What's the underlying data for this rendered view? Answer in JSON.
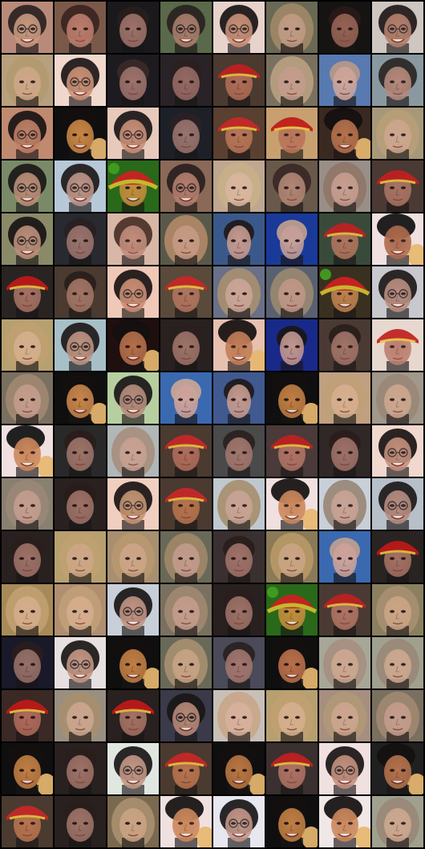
{
  "grid": {
    "rows": 16,
    "cols": 8,
    "tiles": [
      {
        "type": "glasses-dark",
        "bg": "#b98a7a",
        "skin": "#c99a80",
        "hair": "#2a2220"
      },
      {
        "type": "dark-hair",
        "bg": "#7a5a4a",
        "skin": "#c08070",
        "hair": "#3a2420"
      },
      {
        "type": "short-hair",
        "bg": "#1c1a1c",
        "skin": "#a87a70",
        "hair": "#2a1e1e"
      },
      {
        "type": "glasses-dark",
        "bg": "#5a6a4a",
        "skin": "#b08070",
        "hair": "#2a2220"
      },
      {
        "type": "glasses-dark",
        "bg": "#e9d3cc",
        "skin": "#c88a70",
        "hair": "#181414"
      },
      {
        "type": "blonde",
        "bg": "#6a6a55",
        "skin": "#c8a088",
        "hair": "#a08868"
      },
      {
        "type": "short-hair",
        "bg": "#151413",
        "skin": "#a06a5a",
        "hair": "#2a1a18"
      },
      {
        "type": "glasses-dark",
        "bg": "#cfc6c2",
        "skin": "#b47a66",
        "hair": "#201818"
      },
      {
        "type": "blonde",
        "bg": "#b8a07e",
        "skin": "#d0a888",
        "hair": "#b59a70"
      },
      {
        "type": "glasses-dark",
        "bg": "#f0d8cc",
        "skin": "#c88c70",
        "hair": "#1c1616"
      },
      {
        "type": "short-hair",
        "bg": "#1e1c20",
        "skin": "#a87a72",
        "hair": "#3a2a28"
      },
      {
        "type": "short-hair",
        "bg": "#2a2226",
        "skin": "#a0706a",
        "hair": "#2c2020"
      },
      {
        "type": "red-hat",
        "bg": "#4a3a30",
        "skin": "#b87058",
        "hair": "#c02020"
      },
      {
        "type": "blonde",
        "bg": "#7a7060",
        "skin": "#caa090",
        "hair": "#b8a080"
      },
      {
        "type": "pale",
        "bg": "#5a7ab0",
        "skin": "#d8a898",
        "hair": "#b89888"
      },
      {
        "type": "dark-hair",
        "bg": "#8a9aa0",
        "skin": "#b88878",
        "hair": "#2a2624"
      },
      {
        "type": "glasses-dark",
        "bg": "#c08a70",
        "skin": "#c08066",
        "hair": "#1a1414"
      },
      {
        "type": "orange-kid",
        "bg": "#101010",
        "skin": "#d8904a",
        "hair": "#141010"
      },
      {
        "type": "glasses-dark",
        "bg": "#e8cabc",
        "skin": "#c88a72",
        "hair": "#1a1616"
      },
      {
        "type": "short-hair",
        "bg": "#1e2028",
        "skin": "#a47a74",
        "hair": "#2a2024"
      },
      {
        "type": "red-hat",
        "bg": "#5a4030",
        "skin": "#c07a5a",
        "hair": "#c82828"
      },
      {
        "type": "red-hat",
        "bg": "#c8a070",
        "skin": "#b87058",
        "hair": "#c01818"
      },
      {
        "type": "orange-kid",
        "bg": "#3a2a20",
        "skin": "#c07850",
        "hair": "#141010"
      },
      {
        "type": "blonde",
        "bg": "#a8987a",
        "skin": "#d0a890",
        "hair": "#b8a078"
      },
      {
        "type": "glasses-dark",
        "bg": "#7a8a6a",
        "skin": "#c0907a",
        "hair": "#1a1818"
      },
      {
        "type": "glasses-dark",
        "bg": "#b8c8d8",
        "skin": "#c09080",
        "hair": "#1e1a1a"
      },
      {
        "type": "green-hat",
        "bg": "#2a6a1a",
        "skin": "#d09040",
        "hair": "#d02020"
      },
      {
        "type": "glasses-dark",
        "bg": "#8a6a58",
        "skin": "#b88070",
        "hair": "#2a2020"
      },
      {
        "type": "blonde",
        "bg": "#c0a890",
        "skin": "#dab8a0",
        "hair": "#c8b08a"
      },
      {
        "type": "dark-hair",
        "bg": "#6a5a4a",
        "skin": "#b88a78",
        "hair": "#3a2824"
      },
      {
        "type": "blonde",
        "bg": "#9a9088",
        "skin": "#caa090",
        "hair": "#907868"
      },
      {
        "type": "red-hat",
        "bg": "#4a3a34",
        "skin": "#b07868",
        "hair": "#c02020"
      },
      {
        "type": "glasses-dark",
        "bg": "#8a8a6a",
        "skin": "#c0907c",
        "hair": "#181414"
      },
      {
        "type": "short-hair",
        "bg": "#2a2a30",
        "skin": "#a47a72",
        "hair": "#2a2020"
      },
      {
        "type": "dark-hair",
        "bg": "#d8b8a8",
        "skin": "#c08a78",
        "hair": "#4a3028"
      },
      {
        "type": "blonde",
        "bg": "#5a5a4a",
        "skin": "#d0a088",
        "hair": "#b08868"
      },
      {
        "type": "pale",
        "bg": "#3a5a8a",
        "skin": "#d0a090",
        "hair": "#1e1a1a"
      },
      {
        "type": "pale",
        "bg": "#1a3a9a",
        "skin": "#d4a898",
        "hair": "#c0a090"
      },
      {
        "type": "red-hat",
        "bg": "#3a4a3a",
        "skin": "#b87860",
        "hair": "#c02020"
      },
      {
        "type": "orange-kid",
        "bg": "#f0e0e0",
        "skin": "#a86040",
        "hair": "#101010"
      },
      {
        "type": "red-hat",
        "bg": "#2a2422",
        "skin": "#b07868",
        "hair": "#c01818"
      },
      {
        "type": "short-hair",
        "bg": "#4a3a30",
        "skin": "#a87a6a",
        "hair": "#2a1e1c"
      },
      {
        "type": "glasses-dark",
        "bg": "#f0c8b8",
        "skin": "#c88a70",
        "hair": "#1a1414"
      },
      {
        "type": "red-hat",
        "bg": "#5a4a3a",
        "skin": "#b87860",
        "hair": "#c82828"
      },
      {
        "type": "blonde",
        "bg": "#6a7088",
        "skin": "#d4aa98",
        "hair": "#a89070"
      },
      {
        "type": "blonde",
        "bg": "#5a6070",
        "skin": "#c89a88",
        "hair": "#9a8870"
      },
      {
        "type": "green-hat",
        "bg": "#3a3020",
        "skin": "#c88850",
        "hair": "#d02020"
      },
      {
        "type": "glasses-dark",
        "bg": "#c8c8d0",
        "skin": "#b8887a",
        "hair": "#1e1a1a"
      },
      {
        "type": "blonde",
        "bg": "#b8a070",
        "skin": "#d8b090",
        "hair": "#c0a070"
      },
      {
        "type": "glasses-dark",
        "bg": "#a8c0c8",
        "skin": "#c0907a",
        "hair": "#1e1a1a"
      },
      {
        "type": "orange-kid",
        "bg": "#201010",
        "skin": "#c07850",
        "hair": "#141010"
      },
      {
        "type": "short-hair",
        "bg": "#2a2020",
        "skin": "#a87a6e",
        "hair": "#2a201e"
      },
      {
        "type": "orange-kid",
        "bg": "#e8c0b0",
        "skin": "#c07850",
        "hair": "#141010"
      },
      {
        "type": "pale",
        "bg": "#1a2a8a",
        "skin": "#d0a090",
        "hair": "#1a1616"
      },
      {
        "type": "short-hair",
        "bg": "#4a3a34",
        "skin": "#a8786c",
        "hair": "#2a1e1c"
      },
      {
        "type": "red-hat",
        "bg": "#e8d8d0",
        "skin": "#b87868",
        "hair": "#c02020"
      },
      {
        "type": "blonde",
        "bg": "#7a7060",
        "skin": "#caa090",
        "hair": "#a08870"
      },
      {
        "type": "orange-kid",
        "bg": "#101010",
        "skin": "#d89050",
        "hair": "#141010"
      },
      {
        "type": "glasses-dark",
        "bg": "#b8d0a0",
        "skin": "#b8887a",
        "hair": "#1a1616"
      },
      {
        "type": "pale",
        "bg": "#3a6ab0",
        "skin": "#d8a898",
        "hair": "#c8a898"
      },
      {
        "type": "pale",
        "bg": "#405a90",
        "skin": "#d0a090",
        "hair": "#1e1a1a"
      },
      {
        "type": "orange-kid",
        "bg": "#101010",
        "skin": "#d08848",
        "hair": "#141010"
      },
      {
        "type": "blonde",
        "bg": "#c0a080",
        "skin": "#d8b090",
        "hair": "#c0a078"
      },
      {
        "type": "blonde",
        "bg": "#a0988a",
        "skin": "#d0a890",
        "hair": "#9a8878"
      },
      {
        "type": "orange-kid",
        "bg": "#f0e0e0",
        "skin": "#c88050",
        "hair": "#101010"
      },
      {
        "type": "short-hair",
        "bg": "#2a2a2a",
        "skin": "#a87a6e",
        "hair": "#2a1e1c"
      },
      {
        "type": "blonde",
        "bg": "#b0b8b8",
        "skin": "#caa090",
        "hair": "#a89080"
      },
      {
        "type": "red-hat",
        "bg": "#4a3a30",
        "skin": "#b87060",
        "hair": "#c82828"
      },
      {
        "type": "short-hair",
        "bg": "#4a4a4a",
        "skin": "#a87a70",
        "hair": "#2a2020"
      },
      {
        "type": "red-hat",
        "bg": "#4a3a3a",
        "skin": "#b87868",
        "hair": "#c02020"
      },
      {
        "type": "short-hair",
        "bg": "#302828",
        "skin": "#a8786e",
        "hair": "#2a1e1c"
      },
      {
        "type": "glasses-dark",
        "bg": "#f0d8d0",
        "skin": "#c08a76",
        "hair": "#1a1414"
      },
      {
        "type": "blonde",
        "bg": "#8a8070",
        "skin": "#c8a090",
        "hair": "#9a8878"
      },
      {
        "type": "short-hair",
        "bg": "#2a2020",
        "skin": "#a8786c",
        "hair": "#2a1c1a"
      },
      {
        "type": "glasses-dark",
        "bg": "#f0d0c0",
        "skin": "#c0906c",
        "hair": "#1a1414"
      },
      {
        "type": "red-hat",
        "bg": "#4a3a30",
        "skin": "#c07850",
        "hair": "#c82828"
      },
      {
        "type": "blonde",
        "bg": "#c0c8d0",
        "skin": "#caa090",
        "hair": "#a89070"
      },
      {
        "type": "orange-kid",
        "bg": "#f0e0e0",
        "skin": "#c88050",
        "hair": "#141010"
      },
      {
        "type": "blonde",
        "bg": "#c8d0d8",
        "skin": "#c8a090",
        "hair": "#9a8878"
      },
      {
        "type": "glasses-dark",
        "bg": "#b8c0c8",
        "skin": "#b8887a",
        "hair": "#1e1a1a"
      },
      {
        "type": "short-hair",
        "bg": "#2a2020",
        "skin": "#a8786c",
        "hair": "#2a1e1c"
      },
      {
        "type": "blonde",
        "bg": "#b8a070",
        "skin": "#d0a888",
        "hair": "#c0a070"
      },
      {
        "type": "blonde",
        "bg": "#a89070",
        "skin": "#d0a888",
        "hair": "#b89870"
      },
      {
        "type": "blonde",
        "bg": "#6a6a5a",
        "skin": "#caa090",
        "hair": "#a08868"
      },
      {
        "type": "short-hair",
        "bg": "#3a3030",
        "skin": "#a8786e",
        "hair": "#2a1e1c"
      },
      {
        "type": "blonde",
        "bg": "#8a7a58",
        "skin": "#d0a888",
        "hair": "#b89868"
      },
      {
        "type": "pale",
        "bg": "#3a6ab0",
        "skin": "#d8a898",
        "hair": "#c0a090"
      },
      {
        "type": "red-hat",
        "bg": "#2a2422",
        "skin": "#b07868",
        "hair": "#c01818"
      },
      {
        "type": "blonde",
        "bg": "#a88a58",
        "skin": "#d8b090",
        "hair": "#c0a070"
      },
      {
        "type": "blonde",
        "bg": "#b09070",
        "skin": "#d8b090",
        "hair": "#c0a078"
      },
      {
        "type": "glasses-dark",
        "bg": "#c8d0d8",
        "skin": "#c0907c",
        "hair": "#1a1616"
      },
      {
        "type": "blonde",
        "bg": "#7a7060",
        "skin": "#caa090",
        "hair": "#a08870"
      },
      {
        "type": "short-hair",
        "bg": "#2a2020",
        "skin": "#a8786c",
        "hair": "#2a1e1c"
      },
      {
        "type": "green-hat",
        "bg": "#2a6a1a",
        "skin": "#d09040",
        "hair": "#d02020"
      },
      {
        "type": "red-hat",
        "bg": "#4a3a34",
        "skin": "#b87868",
        "hair": "#c02020"
      },
      {
        "type": "blonde",
        "bg": "#8a8060",
        "skin": "#d0a888",
        "hair": "#a89070"
      },
      {
        "type": "short-hair",
        "bg": "#1a1a2a",
        "skin": "#a0786e",
        "hair": "#2a1e1c"
      },
      {
        "type": "glasses-dark",
        "bg": "#e8e0e0",
        "skin": "#c0907c",
        "hair": "#1a1616"
      },
      {
        "type": "orange-kid",
        "bg": "#101010",
        "skin": "#d08848",
        "hair": "#141010"
      },
      {
        "type": "blonde",
        "bg": "#6a6a5a",
        "skin": "#d0a888",
        "hair": "#a89070"
      },
      {
        "type": "short-hair",
        "bg": "#4a4a5a",
        "skin": "#a87a70",
        "hair": "#2a2020"
      },
      {
        "type": "orange-kid",
        "bg": "#101010",
        "skin": "#c87850",
        "hair": "#141010"
      },
      {
        "type": "blonde",
        "bg": "#a8a898",
        "skin": "#d0a890",
        "hair": "#a89080"
      },
      {
        "type": "blonde",
        "bg": "#a0a090",
        "skin": "#d0a890",
        "hair": "#9a8878"
      },
      {
        "type": "red-hat",
        "bg": "#3a2a24",
        "skin": "#b87060",
        "hair": "#c01818"
      },
      {
        "type": "blonde",
        "bg": "#9a9080",
        "skin": "#d0a890",
        "hair": "#a89070"
      },
      {
        "type": "red-hat",
        "bg": "#2a2020",
        "skin": "#b07868",
        "hair": "#c01818"
      },
      {
        "type": "glasses-dark",
        "bg": "#3a3a4a",
        "skin": "#c0907c",
        "hair": "#1a1616"
      },
      {
        "type": "blonde",
        "bg": "#c8c0b8",
        "skin": "#d8b09a",
        "hair": "#c8a88a"
      },
      {
        "type": "blonde",
        "bg": "#b8a070",
        "skin": "#d8b090",
        "hair": "#c0a070"
      },
      {
        "type": "blonde",
        "bg": "#a89080",
        "skin": "#d0a890",
        "hair": "#b09878"
      },
      {
        "type": "blonde",
        "bg": "#7a7060",
        "skin": "#caa090",
        "hair": "#a08870"
      },
      {
        "type": "orange-kid",
        "bg": "#101010",
        "skin": "#d08848",
        "hair": "#141010"
      },
      {
        "type": "short-hair",
        "bg": "#2a2020",
        "skin": "#a8786c",
        "hair": "#2a1e1c"
      },
      {
        "type": "glasses-dark",
        "bg": "#e0e8e0",
        "skin": "#c0907c",
        "hair": "#1a1616"
      },
      {
        "type": "red-hat",
        "bg": "#4a3a30",
        "skin": "#c07850",
        "hair": "#c82828"
      },
      {
        "type": "orange-kid",
        "bg": "#101010",
        "skin": "#c88048",
        "hair": "#141010"
      },
      {
        "type": "red-hat",
        "bg": "#3a3030",
        "skin": "#b87868",
        "hair": "#c02020"
      },
      {
        "type": "glasses-dark",
        "bg": "#f0e0e0",
        "skin": "#c08a76",
        "hair": "#1a1414"
      },
      {
        "type": "orange-kid",
        "bg": "#202020",
        "skin": "#c07850",
        "hair": "#141010"
      },
      {
        "type": "red-hat",
        "bg": "#4a3a30",
        "skin": "#c07850",
        "hair": "#c82828"
      },
      {
        "type": "short-hair",
        "bg": "#2a2020",
        "skin": "#a87a6e",
        "hair": "#2a1e1c"
      },
      {
        "type": "blonde",
        "bg": "#7a6a50",
        "skin": "#d0a888",
        "hair": "#a89070"
      },
      {
        "type": "orange-kid",
        "bg": "#f0e0e0",
        "skin": "#c88050",
        "hair": "#141010"
      },
      {
        "type": "glasses-dark",
        "bg": "#e8e8f0",
        "skin": "#c09080",
        "hair": "#1a1616"
      },
      {
        "type": "orange-kid",
        "bg": "#101010",
        "skin": "#d08848",
        "hair": "#141010"
      },
      {
        "type": "orange-kid",
        "bg": "#f0e8e8",
        "skin": "#c88050",
        "hair": "#141010"
      },
      {
        "type": "blonde",
        "bg": "#a0a090",
        "skin": "#d0a890",
        "hair": "#9a8878"
      }
    ]
  }
}
